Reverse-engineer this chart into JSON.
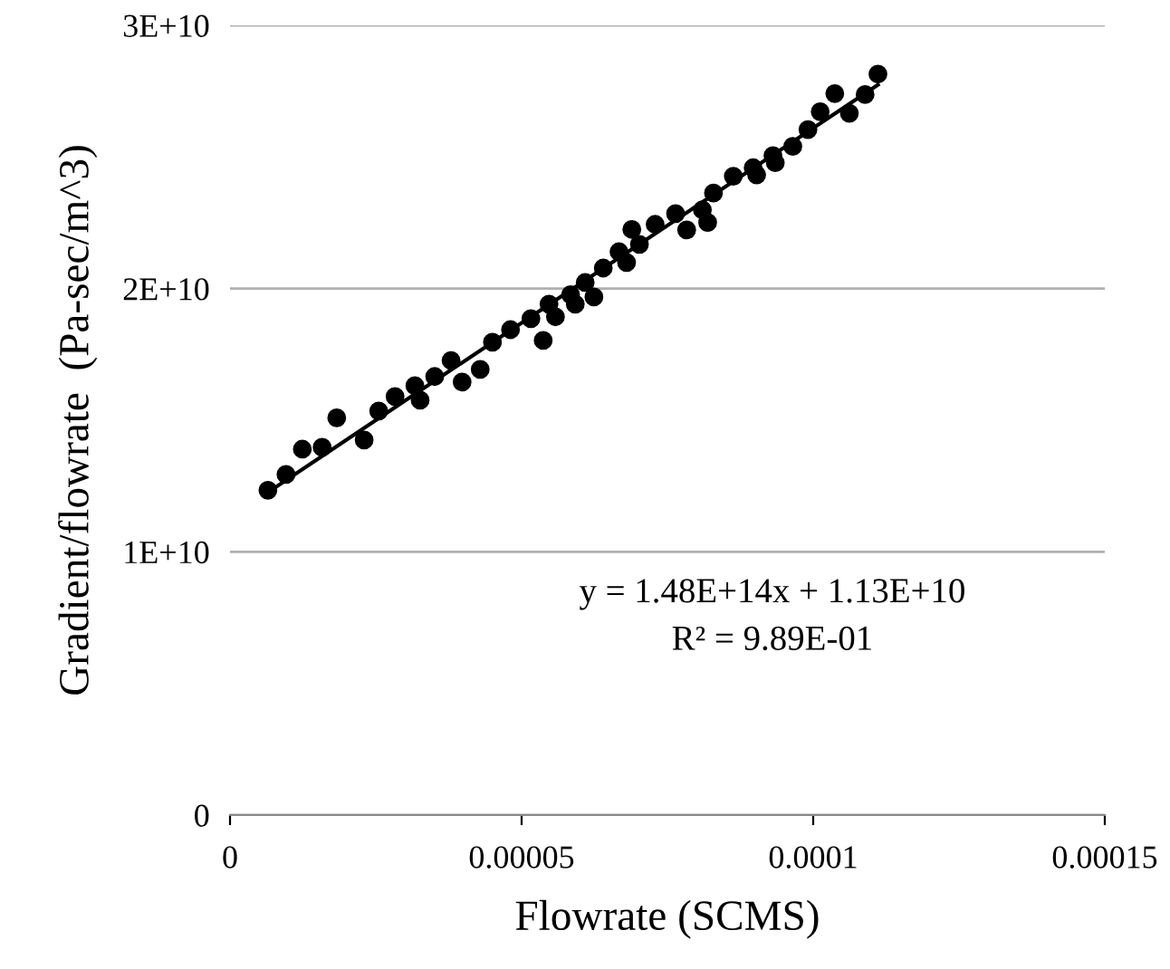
{
  "chart_data": {
    "type": "scatter",
    "xlabel": "Flowrate (SCMS)",
    "ylabel": "Gradient/flowrate  (Pa-sec/m^3)",
    "xlim": [
      0,
      0.00015
    ],
    "ylim": [
      0,
      30000000000
    ],
    "xticks": [
      0,
      {
        "value": 5e-05,
        "label": "0.00005"
      },
      {
        "value": 0.0001,
        "label": "0.0001"
      },
      {
        "value": 0.00015,
        "label": "0.00015"
      }
    ],
    "yticks": [
      0,
      {
        "value": 10000000000,
        "label": "1E+10"
      },
      {
        "value": 20000000000,
        "label": "2E+10"
      },
      {
        "value": 30000000000,
        "label": "3E+10"
      }
    ],
    "grid": "y",
    "marker": "circle",
    "annotations": [
      "y = 1.48E+14x + 1.13E+10",
      "R² = 9.89E-01"
    ],
    "series": [
      {
        "color": "#000000",
        "x": [
          6.5e-06,
          9.6e-06,
          1.24e-05,
          1.58e-05,
          1.83e-05,
          2.3e-05,
          2.55e-05,
          2.83e-05,
          3.17e-05,
          3.26e-05,
          3.51e-05,
          3.79e-05,
          3.98e-05,
          4.29e-05,
          4.5e-05,
          4.81e-05,
          5.16e-05,
          5.37e-05,
          5.47e-05,
          5.58e-05,
          5.84e-05,
          5.92e-05,
          6.09e-05,
          6.24e-05,
          6.4e-05,
          6.67e-05,
          6.8e-05,
          6.89e-05,
          7.02e-05,
          7.29e-05,
          7.64e-05,
          7.83e-05,
          8.1e-05,
          8.19e-05,
          8.29e-05,
          8.63e-05,
          8.97e-05,
          9.03e-05,
          9.31e-05,
          9.35e-05,
          9.65e-05,
          9.91e-05,
          0.0001012,
          0.0001037,
          0.0001062,
          0.0001089,
          0.0001111
        ],
        "values": [
          12340000000.0,
          12940000000.0,
          13900000000.0,
          13970000000.0,
          15090000000.0,
          14250000000.0,
          15350000000.0,
          15900000000.0,
          16310000000.0,
          15760000000.0,
          16660000000.0,
          17270000000.0,
          16450000000.0,
          16930000000.0,
          17960000000.0,
          18440000000.0,
          18860000000.0,
          18030000000.0,
          19410000000.0,
          18930000000.0,
          19770000000.0,
          19410000000.0,
          20230000000.0,
          19680000000.0,
          20780000000.0,
          21400000000.0,
          20990000000.0,
          22250000000.0,
          21680000000.0,
          22440000000.0,
          22850000000.0,
          22230000000.0,
          22990000000.0,
          22510000000.0,
          23630000000.0,
          24270000000.0,
          24590000000.0,
          24320000000.0,
          25050000000.0,
          24780000000.0,
          25400000000.0,
          26040000000.0,
          26720000000.0,
          27410000000.0,
          26660000000.0,
          27370000000.0,
          28150000000.0
        ]
      },
      {
        "type": "line",
        "color": "#000000",
        "marker": "none",
        "line_style": "solid",
        "x": [
          6.5e-06,
          0.0001111
        ],
        "values": [
          12260000000.0,
          27740000000.0
        ]
      }
    ]
  }
}
